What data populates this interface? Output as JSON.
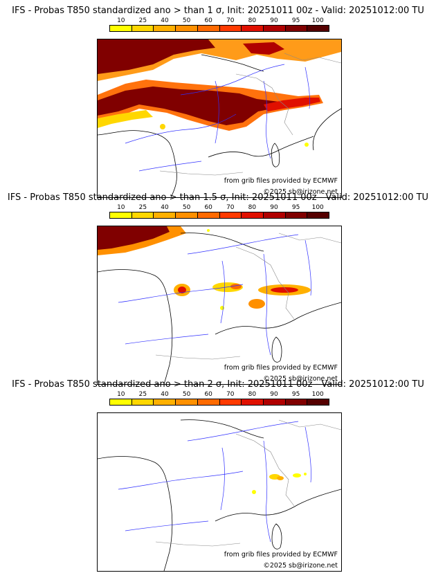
{
  "legend": {
    "ticks": [
      "10",
      "25",
      "40",
      "50",
      "60",
      "70",
      "80",
      "90",
      "95",
      "100"
    ],
    "colors": [
      "#ffff00",
      "#ffd700",
      "#ffb000",
      "#ff9000",
      "#ff6a00",
      "#ff3a00",
      "#e01000",
      "#b00000",
      "#800000",
      "#550000"
    ]
  },
  "panels": [
    {
      "title": "IFS - Probas T850  standardized ano > than 1 σ, Init: 20251011 00z - Valid: 20251012:00 TU",
      "source": "from grib files provided by ECMWF",
      "copyright": "©2025 sb@irizone.net"
    },
    {
      "title": "IFS - Probas T850  standardized ano > than 1.5 σ, Init: 20251011 00z - Valid: 20251012:00 TU",
      "source": "from grib files provided by ECMWF",
      "copyright": "©2025 sb@irizone.net"
    },
    {
      "title": "IFS - Probas T850  standardized ano > than 2 σ, Init: 20251011 00z - Valid: 20251012:00 TU",
      "source": "from grib files provided by ECMWF",
      "copyright": "©2025 sb@irizone.net"
    }
  ]
}
